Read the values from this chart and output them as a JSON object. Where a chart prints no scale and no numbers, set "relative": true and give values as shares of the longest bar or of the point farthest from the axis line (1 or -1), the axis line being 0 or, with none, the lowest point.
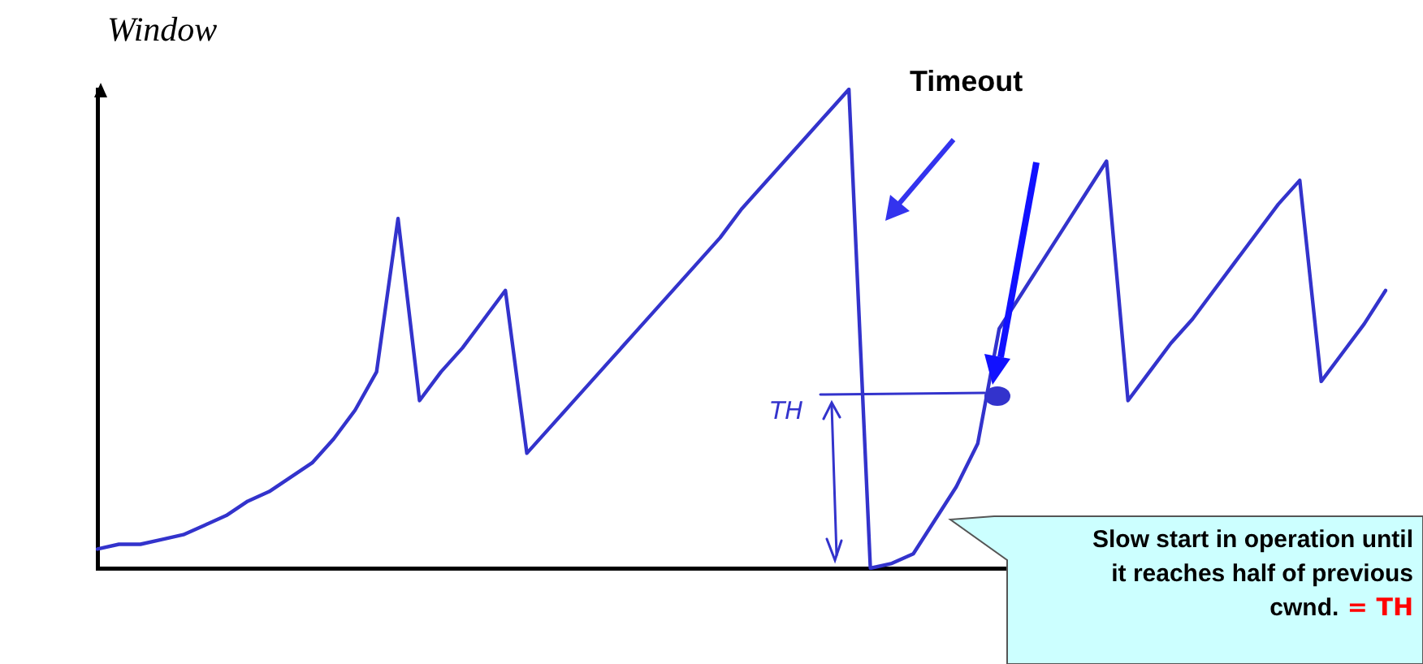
{
  "chart_data": {
    "type": "line",
    "relative": true,
    "ylabel": "Window",
    "grid": false,
    "marker": "none",
    "line_style": "solid",
    "categories": [
      null,
      null,
      null,
      null,
      null,
      null,
      null,
      null,
      null,
      null,
      null,
      null,
      null,
      null,
      null,
      null,
      null,
      null,
      null,
      null,
      null,
      null,
      null,
      null,
      null,
      null,
      null,
      null,
      null,
      null,
      null,
      null,
      null,
      null,
      null,
      null,
      null,
      null,
      null,
      null,
      null,
      null,
      null,
      null,
      null,
      null,
      null,
      null,
      null,
      null,
      null,
      null,
      null,
      null,
      null,
      null,
      null,
      null,
      null,
      null,
      null
    ],
    "series": [
      {
        "color": "#3333cc",
        "values": [
          0.04,
          0.05,
          0.05,
          0.06,
          0.07,
          0.09,
          0.11,
          0.14,
          0.16,
          0.19,
          0.22,
          0.27,
          0.33,
          0.41,
          0.73,
          0.35,
          0.41,
          0.46,
          0.52,
          0.58,
          0.24,
          0.29,
          0.34,
          0.39,
          0.44,
          0.49,
          0.54,
          0.59,
          0.64,
          0.69,
          0.75,
          0.8,
          0.85,
          0.9,
          0.95,
          1,
          0,
          0.01,
          0.03,
          0.1,
          0.17,
          0.26,
          0.5,
          0.57,
          0.64,
          0.71,
          0.78,
          0.85,
          0.35,
          0.41,
          0.47,
          0.52,
          0.58,
          0.64,
          0.7,
          0.76,
          0.81,
          0.39,
          0.45,
          0.51,
          0.58
        ]
      }
    ],
    "annotations": [
      "Timeout",
      "TH",
      "Slow start in operation until it reaches half of previous cwnd.",
      "= TH"
    ]
  }
}
